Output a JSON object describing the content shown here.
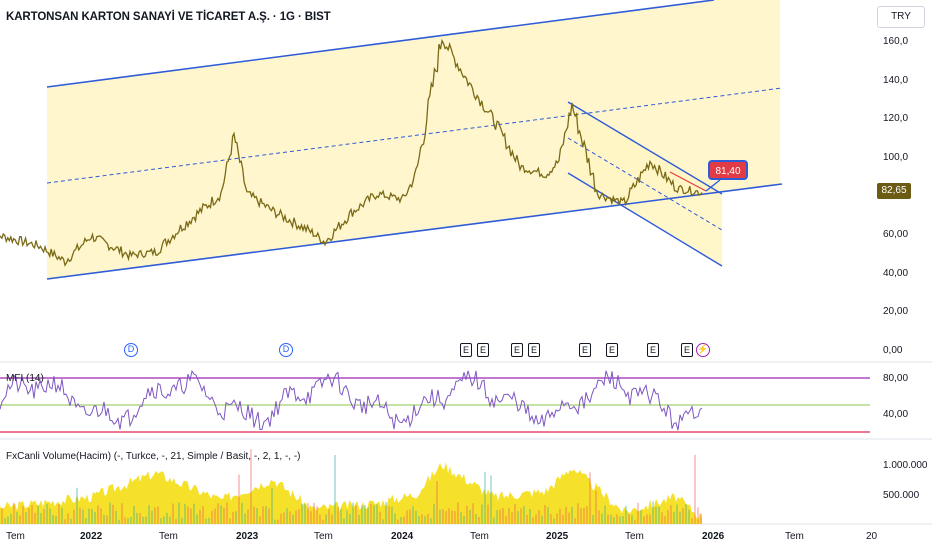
{
  "chart_header": {
    "title": "KARTONSAN KARTON SANAYİ VE TİCARET A.Ş. · 1G · BIST",
    "currency": "TRY"
  },
  "price_pane": {
    "current_price_label": "82,65",
    "callout_label": "81,40",
    "y_ticks": [
      "160,0",
      "140,0",
      "120,0",
      "100,0",
      "60,00",
      "40,00",
      "20,00",
      "0,00"
    ],
    "event_markers": [
      "D",
      "D",
      "E",
      "E",
      "E",
      "E",
      "E",
      "E",
      "E",
      "E"
    ],
    "special_marker_icon": "lightning-icon"
  },
  "mfi_pane": {
    "label": "MFI (14)",
    "y_ticks": [
      "80,00",
      "40,00"
    ]
  },
  "volume_pane": {
    "label": "FxCanli Volume(Hacim) (-, Turkce, -, 21, Simple / Basit, -, 2, 1, -, -)",
    "y_ticks": [
      "1.000.000",
      "500.000"
    ]
  },
  "time_axis": {
    "ticks": [
      "Tem",
      "2022",
      "Tem",
      "2023",
      "Tem",
      "2024",
      "Tem",
      "2025",
      "Tem",
      "2026",
      "Tem",
      "20"
    ]
  },
  "colors": {
    "price_line": "#7a6a16",
    "channel_fill": "#fff5c4",
    "trend_lines": "#2e5bd8",
    "mfi_line": "#7e57c2",
    "mfi_upper": "#9c27b0",
    "mfi_lower": "#e0284f",
    "mfi_mid": "#8bc34a",
    "volume_fill": "#f5e12a",
    "volume_red": "#ef5350",
    "volume_green": "#26a69a",
    "badge": "#6b5b14",
    "callout": "#e23b45"
  },
  "chart_data": [
    {
      "type": "line",
      "title": "KARTONSAN KARTON SANAYİ VE TİCARET A.Ş. · 1G · BIST",
      "xlabel": "",
      "ylabel": "",
      "x": [
        "2021-05",
        "2021-09",
        "2021-11",
        "2022-01",
        "2022-04",
        "2022-06",
        "2022-08",
        "2022-11",
        "2022-12",
        "2023-01",
        "2023-03",
        "2023-06",
        "2023-07",
        "2023-09",
        "2023-11",
        "2024-01",
        "2024-02",
        "2024-04",
        "2024-06",
        "2024-08",
        "2024-10",
        "2024-12",
        "2025-01",
        "2025-02",
        "2025-04",
        "2025-06",
        "2025-08",
        "2025-10",
        "2025-12"
      ],
      "series": [
        {
          "values": [
            62,
            55,
            47,
            60,
            50,
            52,
            65,
            82,
            112,
            82,
            73,
            62,
            57,
            72,
            82,
            79,
            92,
            163,
            140,
            120,
            96,
            92,
            99,
            128,
            82,
            77,
            99,
            85,
            82.65
          ]
        }
      ],
      "ylim": [
        0,
        175
      ]
    },
    {
      "type": "line",
      "title": "MFI (14)",
      "ylim": [
        5,
        100
      ],
      "reference_lines": [
        80,
        50,
        20
      ],
      "x": [
        "2021-05",
        "2022-01",
        "2022-06",
        "2023-01",
        "2023-06",
        "2024-01",
        "2024-06",
        "2025-01",
        "2025-06",
        "2025-12"
      ],
      "series": [
        {
          "values": [
            50,
            60,
            45,
            70,
            40,
            75,
            50,
            60,
            55,
            72
          ]
        }
      ]
    },
    {
      "type": "area",
      "title": "FxCanli Volume(Hacim) (-, Turkce, -, 21, Simple / Basit, -, 2, 1, -, -)",
      "ylim": [
        0,
        1300000
      ],
      "x": [
        "2021-05",
        "2022-01",
        "2022-06",
        "2022-11",
        "2023-03",
        "2023-06",
        "2023-11",
        "2024-02",
        "2024-04",
        "2024-08",
        "2024-12",
        "2025-02",
        "2025-06",
        "2025-10",
        "2025-12"
      ],
      "series": [
        {
          "values": [
            250000,
            450000,
            850000,
            400000,
            750000,
            250000,
            350000,
            500000,
            1000000,
            450000,
            550000,
            950000,
            200000,
            450000,
            100000
          ]
        }
      ]
    }
  ]
}
